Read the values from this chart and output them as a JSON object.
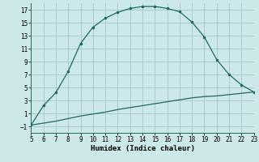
{
  "xlabel": "Humidex (Indice chaleur)",
  "background_color": "#cce8e8",
  "grid_color": "#aacccc",
  "line_color": "#1e6b5e",
  "xlim": [
    5,
    23
  ],
  "ylim": [
    -2,
    18
  ],
  "xticks": [
    5,
    6,
    7,
    8,
    9,
    10,
    11,
    12,
    13,
    14,
    15,
    16,
    17,
    18,
    19,
    20,
    21,
    22,
    23
  ],
  "yticks": [
    -1,
    1,
    3,
    5,
    7,
    9,
    11,
    13,
    15,
    17
  ],
  "curve1_x": [
    5,
    6,
    7,
    8,
    9,
    10,
    11,
    12,
    13,
    14,
    15,
    16,
    17,
    18,
    19,
    20,
    21,
    22,
    23
  ],
  "curve1_y": [
    -0.8,
    2.2,
    4.2,
    7.5,
    11.8,
    14.3,
    15.7,
    16.6,
    17.2,
    17.5,
    17.5,
    17.2,
    16.7,
    15.1,
    12.8,
    9.3,
    7.0,
    5.4,
    4.3
  ],
  "curve2_x": [
    5,
    6,
    7,
    8,
    9,
    10,
    11,
    12,
    13,
    14,
    15,
    16,
    17,
    18,
    19,
    20,
    21,
    22,
    23
  ],
  "curve2_y": [
    -0.8,
    -0.5,
    -0.2,
    0.2,
    0.6,
    0.9,
    1.2,
    1.6,
    1.9,
    2.2,
    2.5,
    2.8,
    3.1,
    3.4,
    3.6,
    3.7,
    3.9,
    4.1,
    4.3
  ],
  "fontsize_label": 6.5,
  "fontsize_tick": 5.5
}
